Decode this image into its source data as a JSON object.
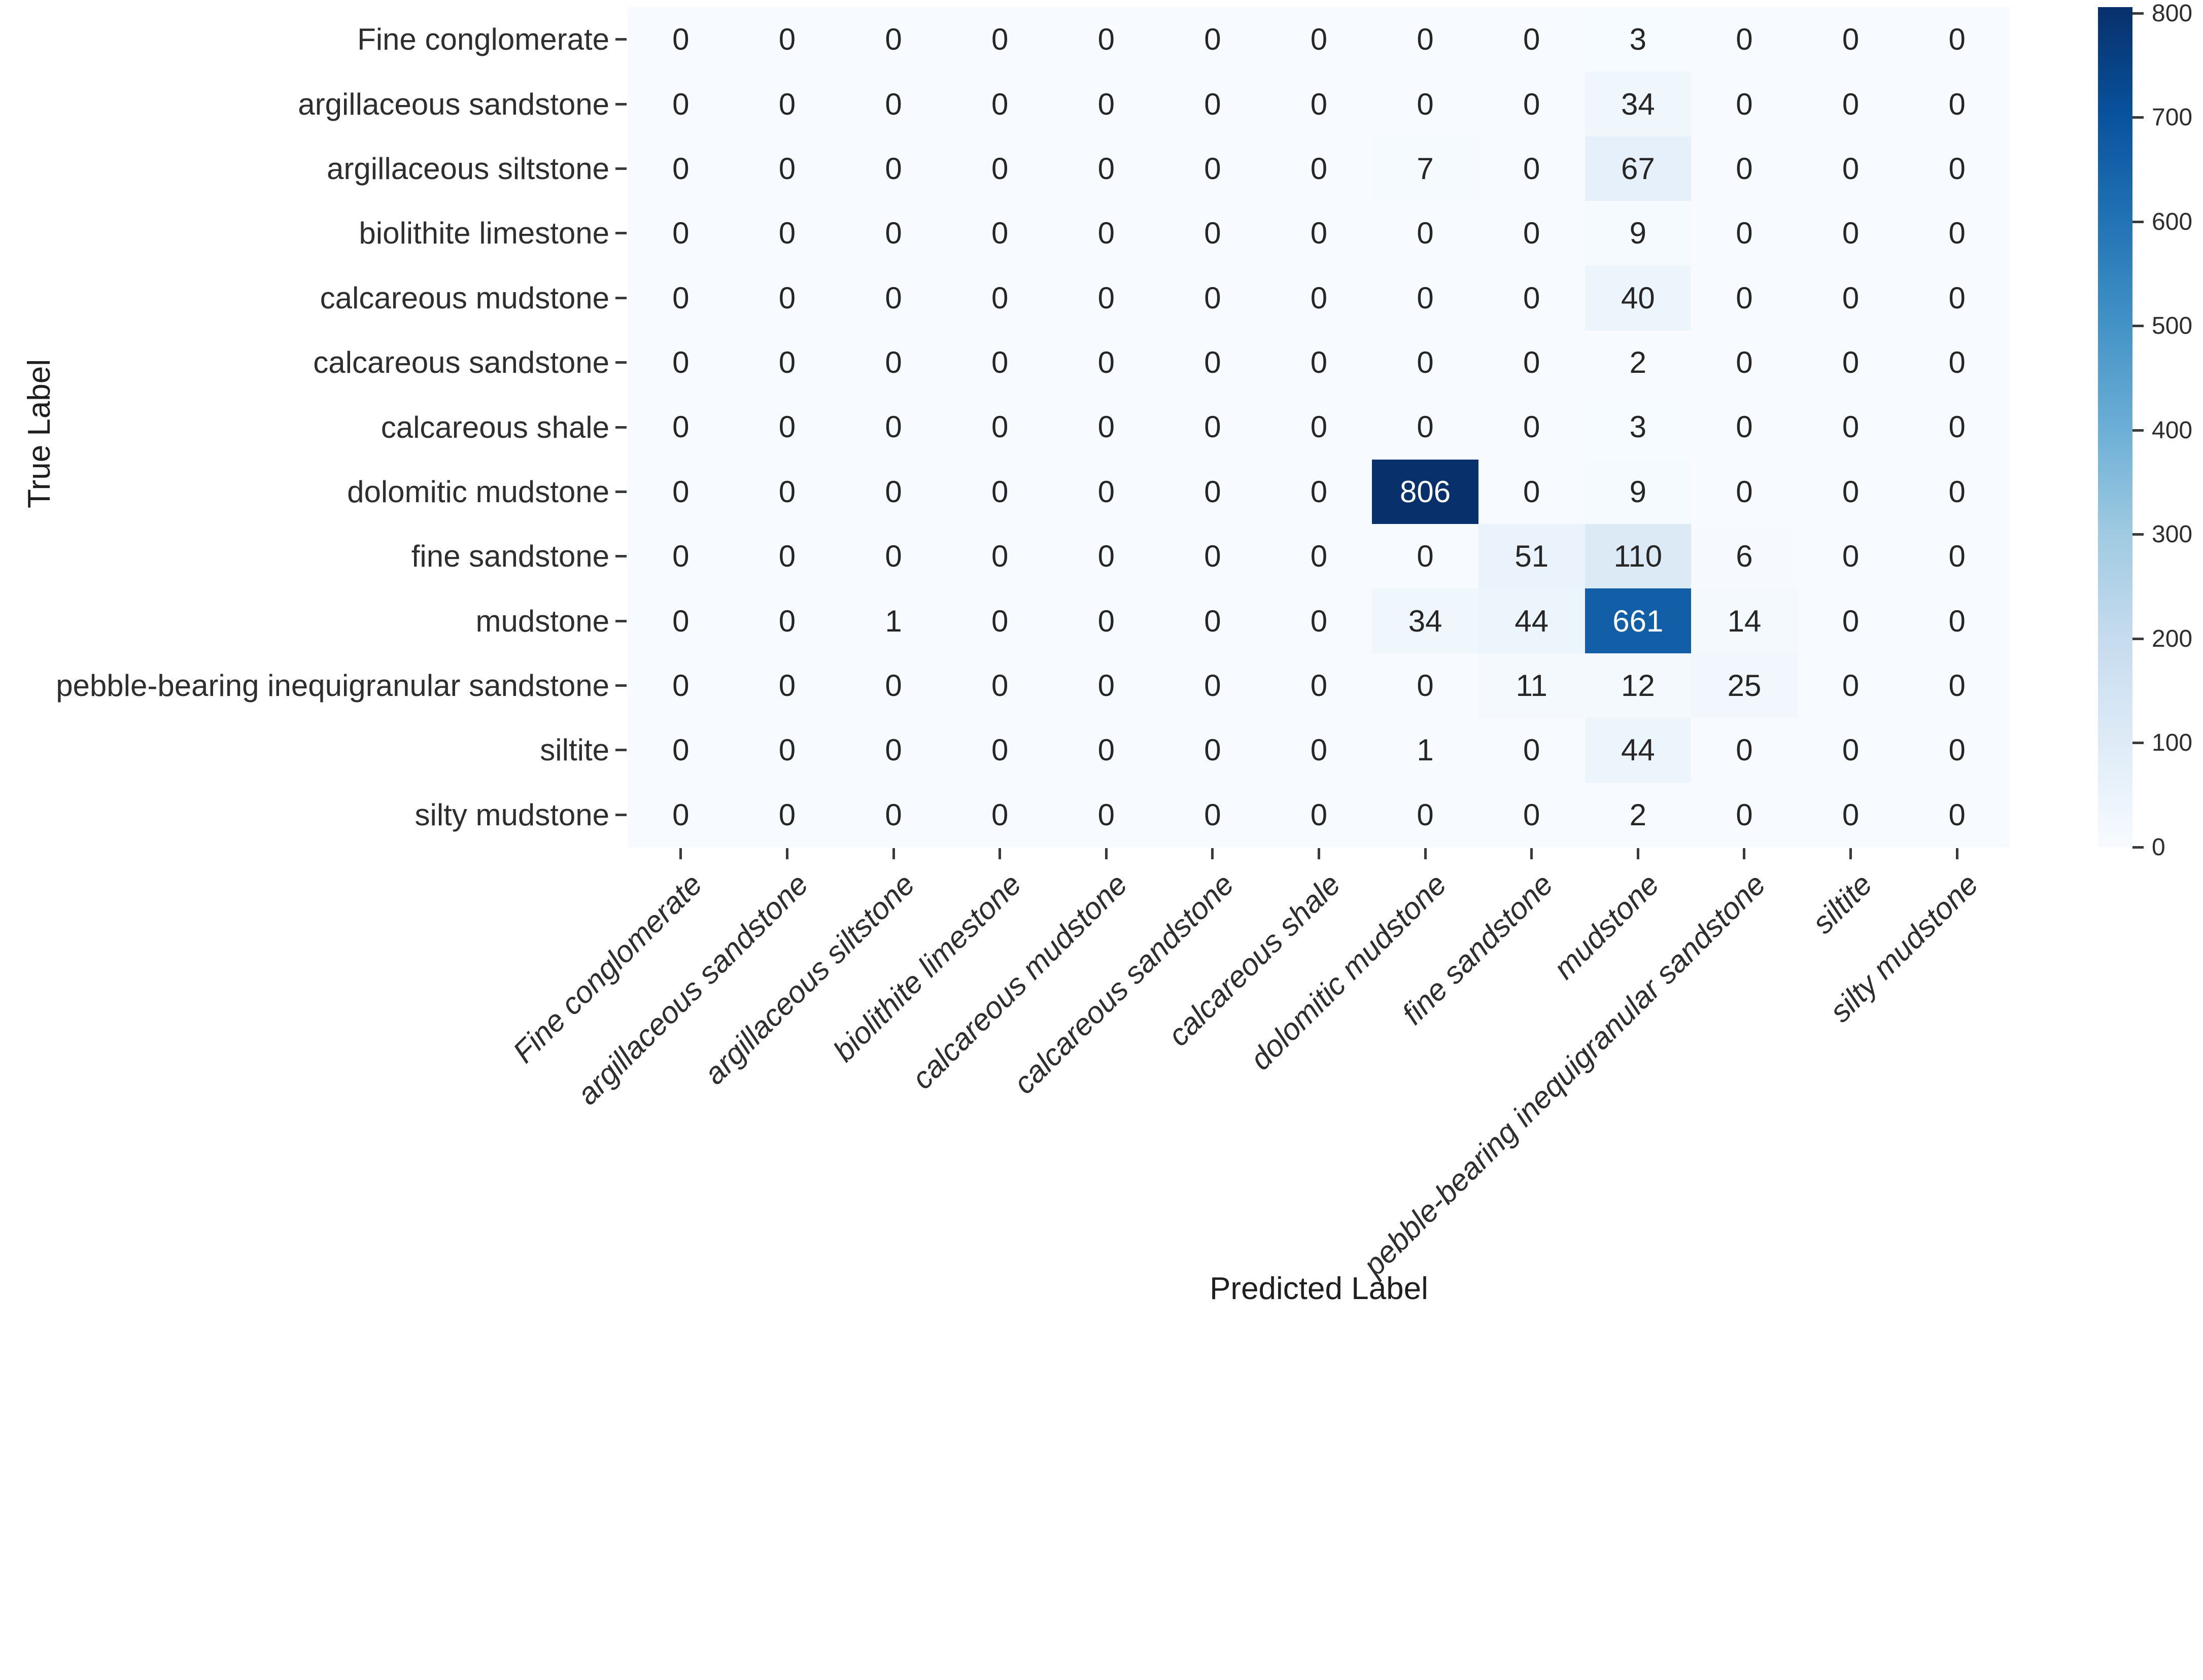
{
  "chart_data": {
    "type": "heatmap",
    "title": "",
    "xlabel": "Predicted Label",
    "ylabel": "True Label",
    "x_tick_labels": [
      "Fine conglomerate",
      "argillaceous sandstone",
      "argillaceous siltstone",
      "biolithite limestone",
      "calcareous mudstone",
      "calcareous sandstone",
      "calcareous shale",
      "dolomitic mudstone",
      "fine sandstone",
      "mudstone",
      "pebble-bearing inequigranular sandstone",
      "siltite",
      "silty mudstone"
    ],
    "y_tick_labels": [
      "Fine conglomerate",
      "argillaceous sandstone",
      "argillaceous siltstone",
      "biolithite limestone",
      "calcareous mudstone",
      "calcareous sandstone",
      "calcareous shale",
      "dolomitic mudstone",
      "fine sandstone",
      "mudstone",
      "pebble-bearing inequigranular sandstone",
      "siltite",
      "silty mudstone"
    ],
    "matrix": [
      [
        0,
        0,
        0,
        0,
        0,
        0,
        0,
        0,
        0,
        3,
        0,
        0,
        0
      ],
      [
        0,
        0,
        0,
        0,
        0,
        0,
        0,
        0,
        0,
        34,
        0,
        0,
        0
      ],
      [
        0,
        0,
        0,
        0,
        0,
        0,
        0,
        7,
        0,
        67,
        0,
        0,
        0
      ],
      [
        0,
        0,
        0,
        0,
        0,
        0,
        0,
        0,
        0,
        9,
        0,
        0,
        0
      ],
      [
        0,
        0,
        0,
        0,
        0,
        0,
        0,
        0,
        0,
        40,
        0,
        0,
        0
      ],
      [
        0,
        0,
        0,
        0,
        0,
        0,
        0,
        0,
        0,
        2,
        0,
        0,
        0
      ],
      [
        0,
        0,
        0,
        0,
        0,
        0,
        0,
        0,
        0,
        3,
        0,
        0,
        0
      ],
      [
        0,
        0,
        0,
        0,
        0,
        0,
        0,
        806,
        0,
        9,
        0,
        0,
        0
      ],
      [
        0,
        0,
        0,
        0,
        0,
        0,
        0,
        0,
        51,
        110,
        6,
        0,
        0
      ],
      [
        0,
        0,
        1,
        0,
        0,
        0,
        0,
        34,
        44,
        661,
        14,
        0,
        0
      ],
      [
        0,
        0,
        0,
        0,
        0,
        0,
        0,
        0,
        11,
        12,
        25,
        0,
        0
      ],
      [
        0,
        0,
        0,
        0,
        0,
        0,
        0,
        1,
        0,
        44,
        0,
        0,
        0
      ],
      [
        0,
        0,
        0,
        0,
        0,
        0,
        0,
        0,
        0,
        2,
        0,
        0,
        0
      ]
    ],
    "annotated": true,
    "colormap": "Blues",
    "vmin": 0,
    "vmax": 806,
    "colorbar_ticks": [
      0,
      100,
      200,
      300,
      400,
      500,
      600,
      700,
      800
    ],
    "colorbar_position": "right",
    "grid": false,
    "legend_position": "none"
  },
  "colors": {
    "background": "#ffffff",
    "tick_text": "#2e2e2e",
    "annotation_dark": "#262626",
    "annotation_light": "#ffffff",
    "blues_anchors": [
      "#f7fbff",
      "#deebf7",
      "#c6dbef",
      "#9ecae1",
      "#6baed6",
      "#4292c6",
      "#2171b5",
      "#08519c",
      "#08306b"
    ]
  }
}
